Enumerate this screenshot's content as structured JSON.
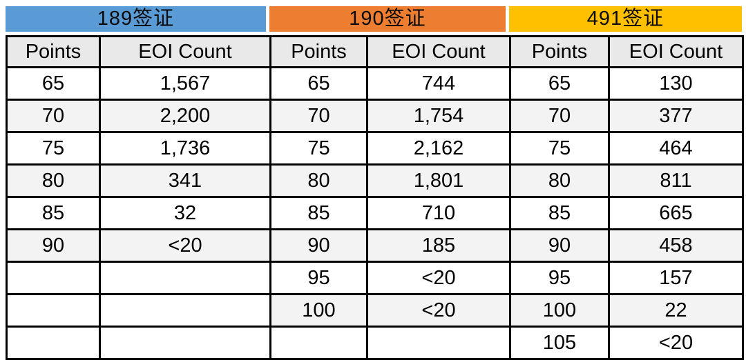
{
  "table": {
    "row_count": 9,
    "border_color": "#000000",
    "subheader_bg": "#e9e9e9",
    "stripe_bg": "#f3f3f3",
    "sections": [
      {
        "title": "189签证",
        "color": "#5b9bd5",
        "col_headers": [
          "Points",
          "EOI Count"
        ],
        "rows": [
          [
            "65",
            "1,567"
          ],
          [
            "70",
            "2,200"
          ],
          [
            "75",
            "1,736"
          ],
          [
            "80",
            "341"
          ],
          [
            "85",
            "32"
          ],
          [
            "90",
            "<20"
          ],
          [
            "",
            ""
          ],
          [
            "",
            ""
          ],
          [
            "",
            ""
          ]
        ]
      },
      {
        "title": "190签证",
        "color": "#ed7d31",
        "col_headers": [
          "Points",
          "EOI Count"
        ],
        "rows": [
          [
            "65",
            "744"
          ],
          [
            "70",
            "1,754"
          ],
          [
            "75",
            "2,162"
          ],
          [
            "80",
            "1,801"
          ],
          [
            "85",
            "710"
          ],
          [
            "90",
            "185"
          ],
          [
            "95",
            "<20"
          ],
          [
            "100",
            "<20"
          ],
          [
            "",
            ""
          ]
        ]
      },
      {
        "title": "491签证",
        "color": "#ffc000",
        "col_headers": [
          "Points",
          "EOI Count"
        ],
        "rows": [
          [
            "65",
            "130"
          ],
          [
            "70",
            "377"
          ],
          [
            "75",
            "464"
          ],
          [
            "80",
            "811"
          ],
          [
            "85",
            "665"
          ],
          [
            "90",
            "458"
          ],
          [
            "95",
            "157"
          ],
          [
            "100",
            "22"
          ],
          [
            "105",
            "<20"
          ]
        ]
      }
    ]
  },
  "chart_data": {
    "type": "table",
    "title": "",
    "sections": [
      {
        "title": "189签证",
        "columns": [
          "Points",
          "EOI Count"
        ],
        "rows": [
          [
            65,
            "1,567"
          ],
          [
            70,
            "2,200"
          ],
          [
            75,
            "1,736"
          ],
          [
            80,
            "341"
          ],
          [
            85,
            "32"
          ],
          [
            90,
            "<20"
          ]
        ]
      },
      {
        "title": "190签证",
        "columns": [
          "Points",
          "EOI Count"
        ],
        "rows": [
          [
            65,
            "744"
          ],
          [
            70,
            "1,754"
          ],
          [
            75,
            "2,162"
          ],
          [
            80,
            "1,801"
          ],
          [
            85,
            "710"
          ],
          [
            90,
            "185"
          ],
          [
            95,
            "<20"
          ],
          [
            100,
            "<20"
          ]
        ]
      },
      {
        "title": "491签证",
        "columns": [
          "Points",
          "EOI Count"
        ],
        "rows": [
          [
            65,
            "130"
          ],
          [
            70,
            "377"
          ],
          [
            75,
            "464"
          ],
          [
            80,
            "811"
          ],
          [
            85,
            "665"
          ],
          [
            90,
            "458"
          ],
          [
            95,
            "157"
          ],
          [
            100,
            "22"
          ],
          [
            105,
            "<20"
          ]
        ]
      }
    ]
  }
}
